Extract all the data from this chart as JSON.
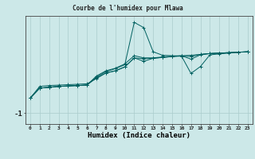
{
  "title": "Courbe de l'humidex pour Mlawa",
  "xlabel": "Humidex (Indice chaleur)",
  "bg_color": "#cce8e8",
  "line_color": "#006060",
  "grid_color": "#aacccc",
  "x_values": [
    0,
    1,
    2,
    3,
    4,
    5,
    6,
    7,
    8,
    9,
    10,
    11,
    12,
    13,
    14,
    15,
    16,
    17,
    18,
    19,
    20,
    21,
    22,
    23
  ],
  "series": [
    [
      -0.65,
      -0.42,
      -0.4,
      -0.38,
      -0.37,
      -0.36,
      -0.35,
      -0.18,
      -0.07,
      -0.02,
      0.07,
      0.28,
      0.26,
      0.27,
      0.29,
      0.31,
      0.33,
      0.34,
      0.36,
      0.38,
      0.39,
      0.4,
      0.41,
      0.42
    ],
    [
      -0.65,
      -0.42,
      -0.4,
      -0.38,
      -0.37,
      -0.36,
      -0.35,
      -0.16,
      -0.04,
      0.03,
      0.12,
      1.1,
      0.98,
      0.42,
      0.34,
      0.33,
      0.32,
      0.31,
      0.36,
      0.38,
      0.39,
      0.4,
      0.41,
      0.42
    ],
    [
      -0.65,
      -0.38,
      -0.36,
      -0.35,
      -0.34,
      -0.33,
      -0.32,
      -0.2,
      -0.07,
      -0.02,
      0.07,
      0.28,
      0.2,
      0.27,
      0.29,
      0.31,
      0.32,
      -0.08,
      0.08,
      0.35,
      0.37,
      0.39,
      0.41,
      0.42
    ],
    [
      -0.65,
      -0.42,
      -0.4,
      -0.38,
      -0.37,
      -0.36,
      -0.35,
      -0.14,
      -0.02,
      0.04,
      0.14,
      0.33,
      0.28,
      0.28,
      0.3,
      0.32,
      0.33,
      0.25,
      0.35,
      0.38,
      0.39,
      0.4,
      0.41,
      0.42
    ]
  ],
  "ylim": [
    -1.25,
    1.25
  ],
  "yticks": [
    -1.0
  ],
  "ytick_labels": [
    "-1"
  ],
  "xticks": [
    0,
    1,
    2,
    3,
    4,
    5,
    6,
    7,
    8,
    9,
    10,
    11,
    12,
    13,
    14,
    15,
    16,
    17,
    18,
    19,
    20,
    21,
    22,
    23
  ],
  "figsize": [
    3.2,
    2.0
  ],
  "dpi": 100
}
